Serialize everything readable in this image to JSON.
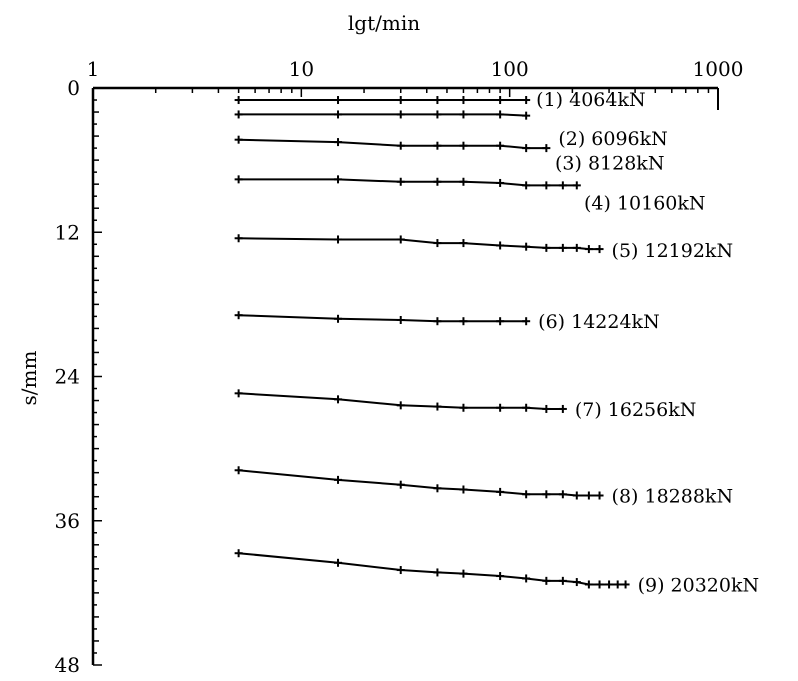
{
  "chart_data": {
    "type": "line",
    "title": "",
    "xlabel": "lgt/min",
    "ylabel": "s/mm",
    "xscale": "log",
    "xlim": [
      1,
      1000
    ],
    "ylim": [
      0,
      48
    ],
    "y_inverted": true,
    "x_axis_position": "top",
    "grid": false,
    "x_ticks": [
      "1",
      "10",
      "100",
      "1000"
    ],
    "y_ticks": [
      "0",
      "12",
      "24",
      "36",
      "48"
    ],
    "series": [
      {
        "name": "(1) 4064kN",
        "x": [
          5,
          15,
          30,
          45,
          60,
          90,
          120
        ],
        "y": [
          1.0,
          1.0,
          1.0,
          1.0,
          1.0,
          1.0,
          1.0
        ]
      },
      {
        "name": "",
        "x": [
          5,
          15,
          30,
          45,
          60,
          90,
          120
        ],
        "y": [
          2.2,
          2.2,
          2.2,
          2.2,
          2.2,
          2.2,
          2.3
        ]
      },
      {
        "name": "(2) 6096kN",
        "x": [
          5,
          15,
          30,
          45,
          60,
          90,
          120,
          150
        ],
        "y": [
          4.3,
          4.5,
          4.8,
          4.8,
          4.8,
          4.8,
          5.0,
          5.0
        ]
      },
      {
        "name": "(3) 8128kN",
        "x": [],
        "y": []
      },
      {
        "name": "(4) 10160kN",
        "x": [
          5,
          15,
          30,
          45,
          60,
          90,
          120,
          150,
          180,
          210
        ],
        "y": [
          7.6,
          7.6,
          7.8,
          7.8,
          7.8,
          7.9,
          8.1,
          8.1,
          8.1,
          8.1
        ]
      },
      {
        "name": "(5) 12192kN",
        "x": [
          5,
          15,
          30,
          45,
          60,
          90,
          120,
          150,
          180,
          210,
          240,
          270
        ],
        "y": [
          12.5,
          12.6,
          12.6,
          12.9,
          12.9,
          13.1,
          13.2,
          13.3,
          13.3,
          13.3,
          13.4,
          13.4
        ]
      },
      {
        "name": "(6) 14224kN",
        "x": [
          5,
          15,
          30,
          45,
          60,
          90,
          120
        ],
        "y": [
          18.9,
          19.2,
          19.3,
          19.4,
          19.4,
          19.4,
          19.4
        ]
      },
      {
        "name": "(7) 16256kN",
        "x": [
          5,
          15,
          30,
          45,
          60,
          90,
          120,
          150,
          180
        ],
        "y": [
          25.4,
          25.9,
          26.4,
          26.5,
          26.6,
          26.6,
          26.6,
          26.7,
          26.7
        ]
      },
      {
        "name": "(8) 18288kN",
        "x": [
          5,
          15,
          30,
          45,
          60,
          90,
          120,
          150,
          180,
          210,
          240,
          270
        ],
        "y": [
          31.8,
          32.6,
          33.0,
          33.3,
          33.4,
          33.6,
          33.8,
          33.8,
          33.8,
          33.9,
          33.9,
          33.9
        ]
      },
      {
        "name": "(9) 20320kN",
        "x": [
          5,
          15,
          30,
          45,
          60,
          90,
          120,
          150,
          180,
          210,
          240,
          270,
          300,
          330,
          360
        ],
        "y": [
          38.7,
          39.5,
          40.1,
          40.3,
          40.4,
          40.6,
          40.8,
          41.0,
          41.0,
          41.1,
          41.3,
          41.3,
          41.3,
          41.3,
          41.3
        ]
      }
    ]
  }
}
